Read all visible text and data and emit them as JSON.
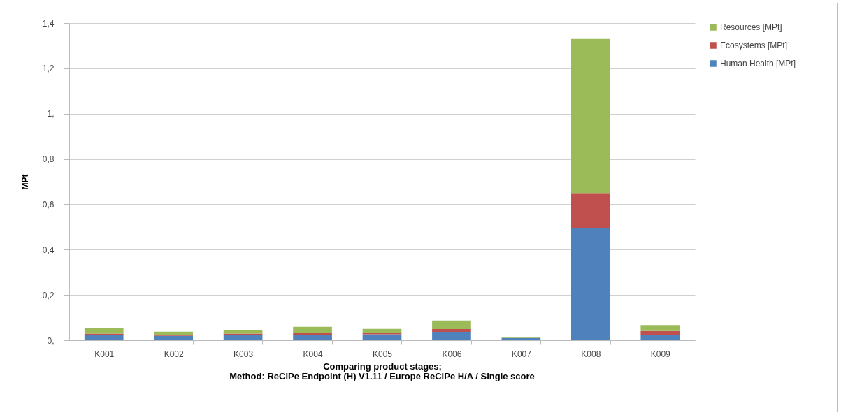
{
  "chart_data": {
    "type": "bar",
    "stacked": true,
    "xlabel": "Comparing product stages;",
    "ylabel": "MPt",
    "annotations": [
      "Method: ReCiPe Endpoint (H) V1.11 / Europe ReCiPe H/A / Single score"
    ],
    "categories": [
      "K001",
      "K002",
      "K003",
      "K004",
      "K005",
      "K006",
      "K007",
      "K008",
      "K009"
    ],
    "series": [
      {
        "name": "Human Health [MPt]",
        "color": "#4f81bd",
        "values": [
          0.023,
          0.019,
          0.022,
          0.023,
          0.026,
          0.037,
          0.01,
          0.495,
          0.024
        ]
      },
      {
        "name": "Ecosystems  [MPt]",
        "color": "#c0504d",
        "values": [
          0.006,
          0.006,
          0.007,
          0.009,
          0.008,
          0.012,
          null,
          0.155,
          0.017
        ]
      },
      {
        "name": "Resources  [MPt]",
        "color": "#9bbb59",
        "values": [
          0.026,
          0.013,
          0.014,
          0.027,
          0.016,
          0.038,
          0.004,
          0.68,
          0.026
        ]
      }
    ],
    "ylim": [
      0,
      1.4
    ],
    "yticks": [
      {
        "value": 0,
        "label": "0,"
      },
      {
        "value": 0.2,
        "label": "0,2"
      },
      {
        "value": 0.4,
        "label": "0,4"
      },
      {
        "value": 0.6,
        "label": "0,6"
      },
      {
        "value": 0.8,
        "label": "0,8"
      },
      {
        "value": 1,
        "label": "1,"
      },
      {
        "value": 1.2,
        "label": "1,2"
      },
      {
        "value": 1.4,
        "label": "1,4"
      }
    ],
    "grid": "y",
    "legend": "right"
  }
}
